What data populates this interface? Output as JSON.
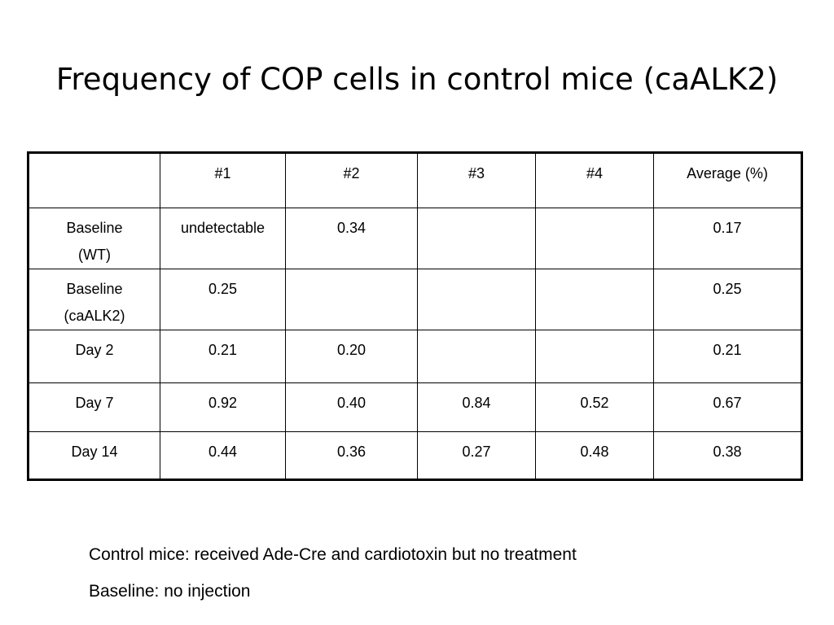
{
  "title": "Frequency of COP cells in control mice (caALK2)",
  "table": {
    "headers": [
      "",
      "#1",
      "#2",
      "#3",
      "#4",
      "Average (%)"
    ],
    "rows": [
      {
        "label_line1": "Baseline",
        "label_line2": "(WT)",
        "cells": [
          "undetectable",
          "0.34",
          "",
          "",
          "0.17"
        ]
      },
      {
        "label_line1": "Baseline",
        "label_line2": "(caALK2)",
        "cells": [
          "0.25",
          "",
          "",
          "",
          "0.25"
        ]
      },
      {
        "label_line1": "Day 2",
        "label_line2": "",
        "cells": [
          "0.21",
          "0.20",
          "",
          "",
          "0.21"
        ]
      },
      {
        "label_line1": "Day 7",
        "label_line2": "",
        "cells": [
          "0.92",
          "0.40",
          "0.84",
          "0.52",
          "0.67"
        ]
      },
      {
        "label_line1": "Day 14",
        "label_line2": "",
        "cells": [
          "0.44",
          "0.36",
          "0.27",
          "0.48",
          "0.38"
        ]
      }
    ]
  },
  "notes": [
    "Control mice: received Ade-Cre and cardiotoxin but no treatment",
    "Baseline: no injection"
  ]
}
